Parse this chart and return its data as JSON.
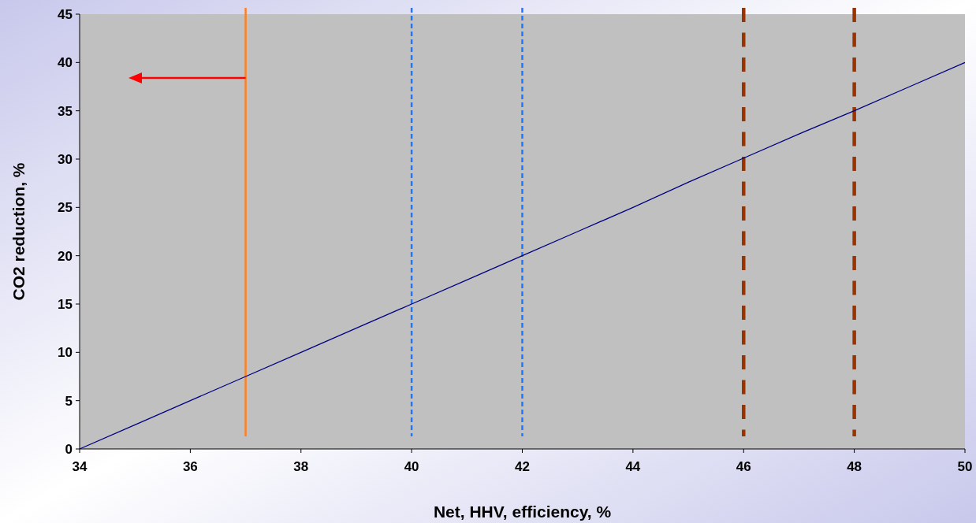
{
  "chart_data": {
    "type": "line",
    "xlabel": "Net, HHV, efficiency, %",
    "ylabel": "CO2 reduction, %",
    "x": [
      34,
      35,
      36,
      37,
      38,
      39,
      40,
      41,
      42,
      43,
      44,
      45,
      46,
      47,
      48,
      49,
      50
    ],
    "series": [
      {
        "color": "#000080",
        "values": [
          0,
          2.5,
          5,
          7.5,
          10,
          12.5,
          15,
          17.5,
          20,
          22.5,
          25,
          27.6,
          30.1,
          32.6,
          35,
          37.5,
          40
        ]
      }
    ],
    "xlim": [
      34,
      50
    ],
    "xticks": [
      34,
      36,
      38,
      40,
      42,
      44,
      46,
      48,
      50
    ],
    "ylim": [
      0,
      45
    ],
    "yticks": [
      0,
      5,
      10,
      15,
      20,
      25,
      30,
      35,
      40,
      45
    ],
    "grid": false,
    "marker": "none",
    "line_style": "solid",
    "ref_lines": [
      {
        "axis": "x",
        "value": 37,
        "color": "#ff7f1e",
        "line_style": "solid"
      },
      {
        "axis": "x",
        "value": 40,
        "color": "#1e78ff",
        "line_style": "dotted"
      },
      {
        "axis": "x",
        "value": 42,
        "color": "#1e78ff",
        "line_style": "dotted"
      },
      {
        "axis": "x",
        "value": 46,
        "color": "#993300",
        "line_style": "dashed"
      },
      {
        "axis": "x",
        "value": 48,
        "color": "#993300",
        "line_style": "dashed"
      }
    ]
  }
}
